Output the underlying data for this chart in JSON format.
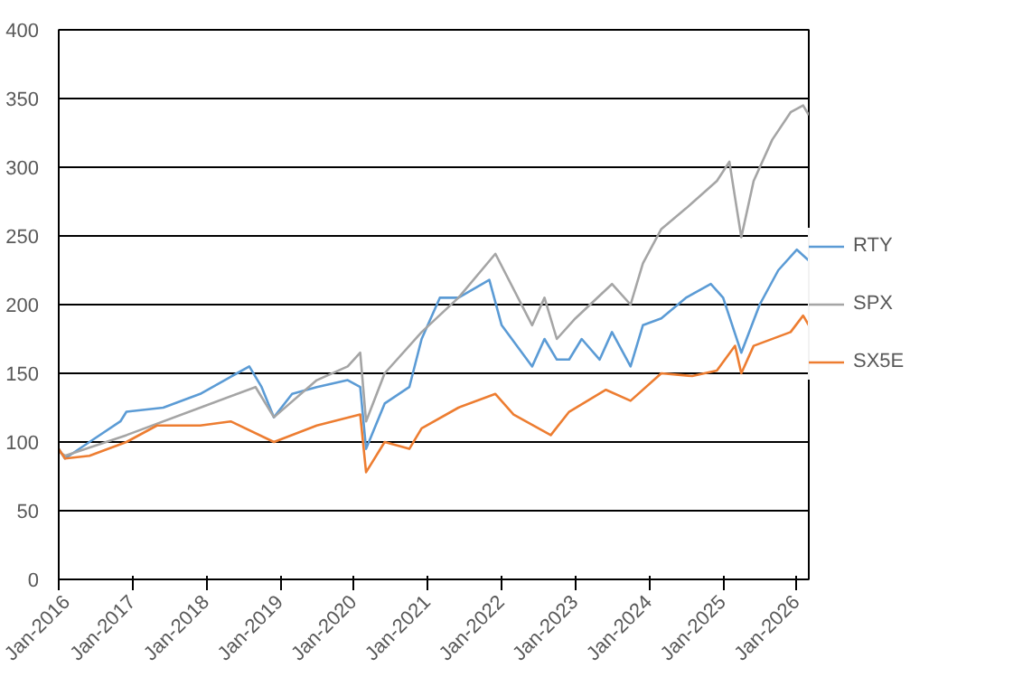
{
  "chart_data": {
    "type": "line",
    "xlim": [
      "2016-01",
      "2026-03"
    ],
    "xticks": [
      {
        "value": "2016-01",
        "label": "Jan-2016"
      },
      {
        "value": "2017-01",
        "label": "Jan-2017"
      },
      {
        "value": "2018-01",
        "label": "Jan-2018"
      },
      {
        "value": "2019-01",
        "label": "Jan-2019"
      },
      {
        "value": "2020-01",
        "label": "Jan-2020"
      },
      {
        "value": "2021-01",
        "label": "Jan-2021"
      },
      {
        "value": "2022-01",
        "label": "Jan-2022"
      },
      {
        "value": "2023-01",
        "label": "Jan-2023"
      },
      {
        "value": "2024-01",
        "label": "Jan-2024"
      },
      {
        "value": "2025-01",
        "label": "Jan-2025"
      },
      {
        "value": "2026-01",
        "label": "Jan-2026"
      }
    ],
    "ylim": [
      0,
      400
    ],
    "yticks": [
      0,
      50,
      100,
      150,
      200,
      250,
      300,
      350,
      400
    ],
    "grid": "y",
    "legend": "right",
    "marker": "none",
    "line_style": "solid",
    "series": [
      {
        "name": "RTY",
        "color": "#5b9bd5",
        "x": [
          "2016-01",
          "2016-02",
          "2016-06",
          "2016-11",
          "2016-12",
          "2017-06",
          "2017-12",
          "2018-06",
          "2018-08",
          "2018-10",
          "2018-12",
          "2019-03",
          "2019-07",
          "2019-12",
          "2020-02",
          "2020-03",
          "2020-06",
          "2020-10",
          "2020-12",
          "2021-03",
          "2021-06",
          "2021-11",
          "2022-01",
          "2022-06",
          "2022-08",
          "2022-10",
          "2022-12",
          "2023-02",
          "2023-05",
          "2023-07",
          "2023-10",
          "2023-12",
          "2024-03",
          "2024-07",
          "2024-11",
          "2025-01",
          "2025-04",
          "2025-07",
          "2025-10",
          "2026-01",
          "2026-03"
        ],
        "values": [
          95,
          88,
          100,
          115,
          122,
          125,
          135,
          150,
          155,
          140,
          118,
          135,
          140,
          145,
          140,
          95,
          128,
          140,
          175,
          205,
          205,
          218,
          185,
          155,
          175,
          160,
          160,
          175,
          160,
          180,
          155,
          185,
          190,
          205,
          215,
          205,
          165,
          200,
          225,
          240,
          232
        ]
      },
      {
        "name": "SPX",
        "color": "#a5a5a5",
        "x": [
          "2016-01",
          "2016-02",
          "2016-12",
          "2017-12",
          "2018-09",
          "2018-12",
          "2019-07",
          "2019-12",
          "2020-02",
          "2020-03",
          "2020-06",
          "2020-12",
          "2021-06",
          "2021-12",
          "2022-06",
          "2022-08",
          "2022-10",
          "2023-01",
          "2023-07",
          "2023-10",
          "2023-12",
          "2024-03",
          "2024-07",
          "2024-12",
          "2025-02",
          "2025-04",
          "2025-06",
          "2025-09",
          "2025-12",
          "2026-02",
          "2026-03"
        ],
        "values": [
          93,
          90,
          105,
          125,
          140,
          118,
          145,
          155,
          165,
          115,
          150,
          180,
          205,
          237,
          185,
          205,
          175,
          190,
          215,
          200,
          230,
          255,
          270,
          290,
          304,
          249,
          290,
          320,
          340,
          345,
          338
        ]
      },
      {
        "name": "SX5E",
        "color": "#ed7d31",
        "x": [
          "2016-01",
          "2016-02",
          "2016-06",
          "2016-12",
          "2017-05",
          "2017-12",
          "2018-05",
          "2018-12",
          "2019-07",
          "2020-02",
          "2020-03",
          "2020-06",
          "2020-10",
          "2020-12",
          "2021-06",
          "2021-12",
          "2022-03",
          "2022-09",
          "2022-12",
          "2023-06",
          "2023-10",
          "2024-03",
          "2024-08",
          "2024-12",
          "2025-03",
          "2025-04",
          "2025-06",
          "2025-12",
          "2026-02",
          "2026-03"
        ],
        "values": [
          95,
          88,
          90,
          100,
          112,
          112,
          115,
          100,
          112,
          120,
          78,
          100,
          95,
          110,
          125,
          135,
          120,
          105,
          122,
          138,
          130,
          150,
          148,
          152,
          170,
          150,
          170,
          180,
          192,
          185
        ]
      }
    ]
  }
}
